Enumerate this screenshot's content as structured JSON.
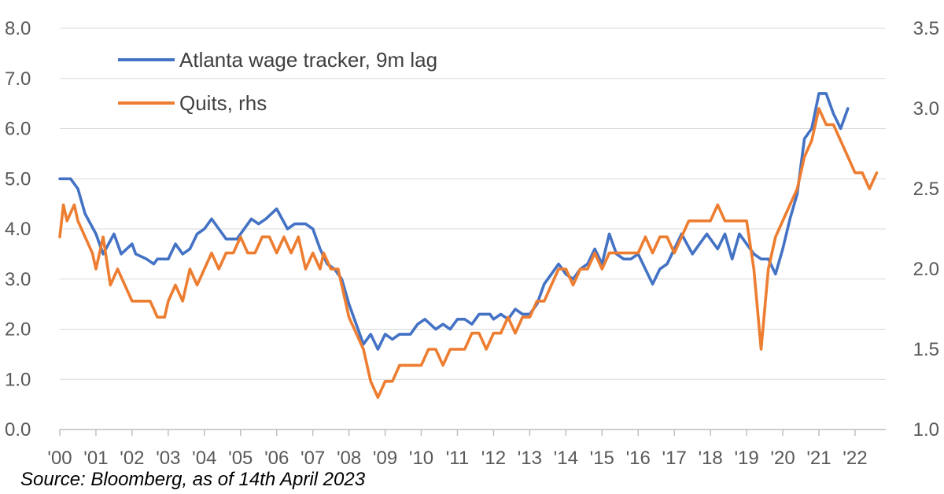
{
  "chart_data": {
    "type": "line",
    "title": "",
    "xlabel": "",
    "ylabel": "",
    "y_left": {
      "range": [
        0,
        8
      ],
      "ticks": [
        "0.0",
        "1.0",
        "2.0",
        "3.0",
        "4.0",
        "5.0",
        "6.0",
        "7.0",
        "8.0"
      ]
    },
    "y_right": {
      "range": [
        1.0,
        3.5
      ],
      "ticks": [
        "1.0",
        "1.5",
        "2.0",
        "2.5",
        "3.0",
        "3.5"
      ]
    },
    "x_ticks": [
      "'00",
      "'01",
      "'02",
      "'03",
      "'04",
      "'05",
      "'06",
      "'07",
      "'08",
      "'09",
      "'10",
      "'11",
      "'12",
      "'13",
      "'14",
      "'15",
      "'16",
      "'17",
      "'18",
      "'19",
      "'20",
      "'21",
      "'22"
    ],
    "grid": "horizontal",
    "legend_position": "top-left",
    "series": [
      {
        "name": "Atlanta wage tracker, 9m lag",
        "axis": "left",
        "color": "#4472C4",
        "points": [
          [
            2000.0,
            5.0
          ],
          [
            2000.3,
            5.0
          ],
          [
            2000.5,
            4.8
          ],
          [
            2000.7,
            4.3
          ],
          [
            2001.0,
            3.9
          ],
          [
            2001.2,
            3.5
          ],
          [
            2001.5,
            3.9
          ],
          [
            2001.7,
            3.5
          ],
          [
            2002.0,
            3.7
          ],
          [
            2002.1,
            3.5
          ],
          [
            2002.4,
            3.4
          ],
          [
            2002.6,
            3.3
          ],
          [
            2002.7,
            3.4
          ],
          [
            2003.0,
            3.4
          ],
          [
            2003.2,
            3.7
          ],
          [
            2003.4,
            3.5
          ],
          [
            2003.6,
            3.6
          ],
          [
            2003.8,
            3.9
          ],
          [
            2004.0,
            4.0
          ],
          [
            2004.2,
            4.2
          ],
          [
            2004.4,
            4.0
          ],
          [
            2004.6,
            3.8
          ],
          [
            2004.9,
            3.8
          ],
          [
            2005.1,
            4.0
          ],
          [
            2005.3,
            4.2
          ],
          [
            2005.5,
            4.1
          ],
          [
            2005.7,
            4.2
          ],
          [
            2006.0,
            4.4
          ],
          [
            2006.3,
            4.0
          ],
          [
            2006.5,
            4.1
          ],
          [
            2006.8,
            4.1
          ],
          [
            2007.0,
            4.0
          ],
          [
            2007.2,
            3.6
          ],
          [
            2007.4,
            3.3
          ],
          [
            2007.6,
            3.2
          ],
          [
            2007.8,
            3.0
          ],
          [
            2008.0,
            2.5
          ],
          [
            2008.2,
            2.1
          ],
          [
            2008.4,
            1.7
          ],
          [
            2008.6,
            1.9
          ],
          [
            2008.8,
            1.6
          ],
          [
            2009.0,
            1.9
          ],
          [
            2009.2,
            1.8
          ],
          [
            2009.4,
            1.9
          ],
          [
            2009.7,
            1.9
          ],
          [
            2009.9,
            2.1
          ],
          [
            2010.1,
            2.2
          ],
          [
            2010.4,
            2.0
          ],
          [
            2010.6,
            2.1
          ],
          [
            2010.8,
            2.0
          ],
          [
            2011.0,
            2.2
          ],
          [
            2011.2,
            2.2
          ],
          [
            2011.4,
            2.1
          ],
          [
            2011.6,
            2.3
          ],
          [
            2011.9,
            2.3
          ],
          [
            2012.0,
            2.2
          ],
          [
            2012.2,
            2.3
          ],
          [
            2012.4,
            2.2
          ],
          [
            2012.6,
            2.4
          ],
          [
            2012.8,
            2.3
          ],
          [
            2013.0,
            2.3
          ],
          [
            2013.2,
            2.5
          ],
          [
            2013.4,
            2.9
          ],
          [
            2013.6,
            3.1
          ],
          [
            2013.8,
            3.3
          ],
          [
            2014.0,
            3.1
          ],
          [
            2014.2,
            3.0
          ],
          [
            2014.4,
            3.2
          ],
          [
            2014.6,
            3.3
          ],
          [
            2014.8,
            3.6
          ],
          [
            2015.0,
            3.3
          ],
          [
            2015.2,
            3.9
          ],
          [
            2015.4,
            3.5
          ],
          [
            2015.6,
            3.4
          ],
          [
            2015.8,
            3.4
          ],
          [
            2016.0,
            3.5
          ],
          [
            2016.2,
            3.2
          ],
          [
            2016.4,
            2.9
          ],
          [
            2016.6,
            3.2
          ],
          [
            2016.8,
            3.3
          ],
          [
            2017.0,
            3.6
          ],
          [
            2017.2,
            3.9
          ],
          [
            2017.5,
            3.5
          ],
          [
            2017.7,
            3.7
          ],
          [
            2017.9,
            3.9
          ],
          [
            2018.2,
            3.6
          ],
          [
            2018.4,
            3.9
          ],
          [
            2018.6,
            3.4
          ],
          [
            2018.8,
            3.9
          ],
          [
            2019.0,
            3.7
          ],
          [
            2019.2,
            3.5
          ],
          [
            2019.4,
            3.4
          ],
          [
            2019.6,
            3.4
          ],
          [
            2019.8,
            3.1
          ],
          [
            2020.0,
            3.6
          ],
          [
            2020.2,
            4.2
          ],
          [
            2020.4,
            4.7
          ],
          [
            2020.6,
            5.8
          ],
          [
            2020.8,
            6.0
          ],
          [
            2021.0,
            6.7
          ],
          [
            2021.2,
            6.7
          ],
          [
            2021.4,
            6.3
          ],
          [
            2021.6,
            6.0
          ],
          [
            2021.8,
            6.4
          ]
        ]
      },
      {
        "name": "Quits, rhs",
        "axis": "right",
        "color": "#ED7D31",
        "points": [
          [
            2000.0,
            2.2
          ],
          [
            2000.1,
            2.4
          ],
          [
            2000.2,
            2.3
          ],
          [
            2000.4,
            2.4
          ],
          [
            2000.5,
            2.3
          ],
          [
            2000.7,
            2.2
          ],
          [
            2000.9,
            2.1
          ],
          [
            2001.0,
            2.0
          ],
          [
            2001.2,
            2.2
          ],
          [
            2001.4,
            1.9
          ],
          [
            2001.6,
            2.0
          ],
          [
            2001.8,
            1.9
          ],
          [
            2002.0,
            1.8
          ],
          [
            2002.3,
            1.8
          ],
          [
            2002.5,
            1.8
          ],
          [
            2002.7,
            1.7
          ],
          [
            2002.9,
            1.7
          ],
          [
            2003.0,
            1.8
          ],
          [
            2003.2,
            1.9
          ],
          [
            2003.4,
            1.8
          ],
          [
            2003.6,
            2.0
          ],
          [
            2003.8,
            1.9
          ],
          [
            2004.0,
            2.0
          ],
          [
            2004.2,
            2.1
          ],
          [
            2004.4,
            2.0
          ],
          [
            2004.6,
            2.1
          ],
          [
            2004.8,
            2.1
          ],
          [
            2005.0,
            2.2
          ],
          [
            2005.2,
            2.1
          ],
          [
            2005.4,
            2.1
          ],
          [
            2005.6,
            2.2
          ],
          [
            2005.8,
            2.2
          ],
          [
            2006.0,
            2.1
          ],
          [
            2006.2,
            2.2
          ],
          [
            2006.4,
            2.1
          ],
          [
            2006.6,
            2.2
          ],
          [
            2006.8,
            2.0
          ],
          [
            2007.0,
            2.1
          ],
          [
            2007.2,
            2.0
          ],
          [
            2007.3,
            2.1
          ],
          [
            2007.5,
            2.0
          ],
          [
            2007.7,
            2.0
          ],
          [
            2007.9,
            1.8
          ],
          [
            2008.0,
            1.7
          ],
          [
            2008.2,
            1.6
          ],
          [
            2008.4,
            1.5
          ],
          [
            2008.6,
            1.3
          ],
          [
            2008.8,
            1.2
          ],
          [
            2009.0,
            1.3
          ],
          [
            2009.2,
            1.3
          ],
          [
            2009.4,
            1.4
          ],
          [
            2009.6,
            1.4
          ],
          [
            2009.8,
            1.4
          ],
          [
            2010.0,
            1.4
          ],
          [
            2010.2,
            1.5
          ],
          [
            2010.4,
            1.5
          ],
          [
            2010.6,
            1.4
          ],
          [
            2010.8,
            1.5
          ],
          [
            2011.0,
            1.5
          ],
          [
            2011.2,
            1.5
          ],
          [
            2011.4,
            1.6
          ],
          [
            2011.6,
            1.6
          ],
          [
            2011.8,
            1.5
          ],
          [
            2012.0,
            1.6
          ],
          [
            2012.2,
            1.6
          ],
          [
            2012.4,
            1.7
          ],
          [
            2012.6,
            1.6
          ],
          [
            2012.8,
            1.7
          ],
          [
            2013.0,
            1.7
          ],
          [
            2013.2,
            1.8
          ],
          [
            2013.4,
            1.8
          ],
          [
            2013.6,
            1.9
          ],
          [
            2013.8,
            2.0
          ],
          [
            2014.0,
            2.0
          ],
          [
            2014.2,
            1.9
          ],
          [
            2014.4,
            2.0
          ],
          [
            2014.6,
            2.0
          ],
          [
            2014.8,
            2.1
          ],
          [
            2015.0,
            2.0
          ],
          [
            2015.2,
            2.1
          ],
          [
            2015.4,
            2.1
          ],
          [
            2015.6,
            2.1
          ],
          [
            2015.8,
            2.1
          ],
          [
            2016.0,
            2.1
          ],
          [
            2016.2,
            2.2
          ],
          [
            2016.4,
            2.1
          ],
          [
            2016.6,
            2.2
          ],
          [
            2016.8,
            2.2
          ],
          [
            2017.0,
            2.1
          ],
          [
            2017.2,
            2.2
          ],
          [
            2017.4,
            2.3
          ],
          [
            2017.6,
            2.3
          ],
          [
            2017.8,
            2.3
          ],
          [
            2018.0,
            2.3
          ],
          [
            2018.2,
            2.4
          ],
          [
            2018.4,
            2.3
          ],
          [
            2018.6,
            2.3
          ],
          [
            2018.8,
            2.3
          ],
          [
            2019.0,
            2.3
          ],
          [
            2019.2,
            2.0
          ],
          [
            2019.4,
            1.5
          ],
          [
            2019.6,
            2.0
          ],
          [
            2019.8,
            2.2
          ],
          [
            2020.0,
            2.3
          ],
          [
            2020.2,
            2.4
          ],
          [
            2020.4,
            2.5
          ],
          [
            2020.6,
            2.7
          ],
          [
            2020.8,
            2.8
          ],
          [
            2021.0,
            3.0
          ],
          [
            2021.2,
            2.9
          ],
          [
            2021.4,
            2.9
          ],
          [
            2021.6,
            2.8
          ],
          [
            2021.8,
            2.7
          ],
          [
            2022.0,
            2.6
          ],
          [
            2022.2,
            2.6
          ],
          [
            2022.4,
            2.5
          ],
          [
            2022.6,
            2.6
          ]
        ]
      }
    ],
    "source": "Source: Bloomberg, as of 14th April 2023"
  }
}
